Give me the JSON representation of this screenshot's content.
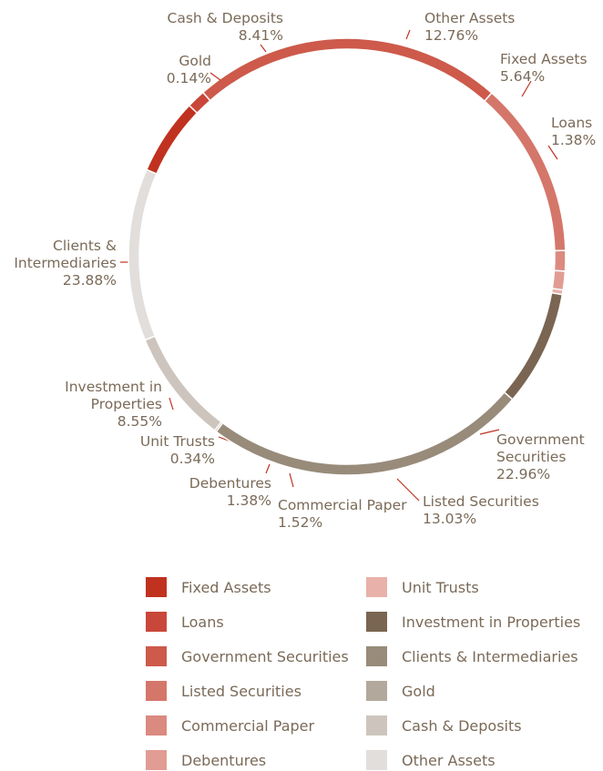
{
  "chart_data": {
    "type": "pie",
    "style": "donut",
    "legend_position": "bottom",
    "slices": [
      {
        "name": "Fixed Assets",
        "value": 5.64,
        "label": "5.64%",
        "color": "#c0321f"
      },
      {
        "name": "Loans",
        "value": 1.38,
        "label": "1.38%",
        "color": "#c9473a"
      },
      {
        "name": "Government Securities",
        "value": 22.96,
        "label": "22.96%",
        "color": "#cd5a4b"
      },
      {
        "name": "Listed Securities",
        "value": 13.03,
        "label": "13.03%",
        "color": "#d5766a"
      },
      {
        "name": "Commercial Paper",
        "value": 1.52,
        "label": "1.52%",
        "color": "#db8a80"
      },
      {
        "name": "Debentures",
        "value": 1.38,
        "label": "1.38%",
        "color": "#e19c94"
      },
      {
        "name": "Unit Trusts",
        "value": 0.34,
        "label": "0.34%",
        "color": "#e8b1aa"
      },
      {
        "name": "Investment in Properties",
        "value": 8.55,
        "label": "8.55%",
        "color": "#7a6552"
      },
      {
        "name": "Clients & Intermediaries",
        "value": 23.88,
        "label": "23.88%",
        "color": "#988b7a"
      },
      {
        "name": "Gold",
        "value": 0.14,
        "label": "0.14%",
        "color": "#b3a89c"
      },
      {
        "name": "Cash & Deposits",
        "value": 8.41,
        "label": "8.41%",
        "color": "#cdc5bd"
      },
      {
        "name": "Other Assets",
        "value": 12.76,
        "label": "12.76%",
        "color": "#e2dedb"
      }
    ],
    "slice_labels": {
      "Fixed Assets": [
        "Fixed Assets",
        "5.64%"
      ],
      "Loans": [
        "Loans",
        "1.38%"
      ],
      "Government Securities": [
        "Government",
        "Securities",
        "22.96%"
      ],
      "Listed Securities": [
        "Listed Securities",
        "13.03%"
      ],
      "Commercial Paper": [
        "Commercial Paper",
        "1.52%"
      ],
      "Debentures": [
        "Debentures",
        "1.38%"
      ],
      "Unit Trusts": [
        "Unit Trusts",
        "0.34%"
      ],
      "Investment in Properties": [
        "Investment in",
        "Properties",
        "8.55%"
      ],
      "Clients & Intermediaries": [
        "Clients &",
        "Intermediaries",
        "23.88%"
      ],
      "Gold": [
        "Gold",
        "0.14%"
      ],
      "Cash & Deposits": [
        "Cash & Deposits",
        "8.41%"
      ],
      "Other Assets": [
        "Other Assets",
        "12.76%"
      ]
    },
    "legend": {
      "left": [
        "Fixed Assets",
        "Loans",
        "Government Securities",
        "Listed Securities",
        "Commercial Paper",
        "Debentures"
      ],
      "right": [
        "Unit Trusts",
        "Investment in Properties",
        "Clients & Intermediaries",
        "Gold",
        "Cash & Deposits",
        "Other Assets"
      ]
    }
  }
}
